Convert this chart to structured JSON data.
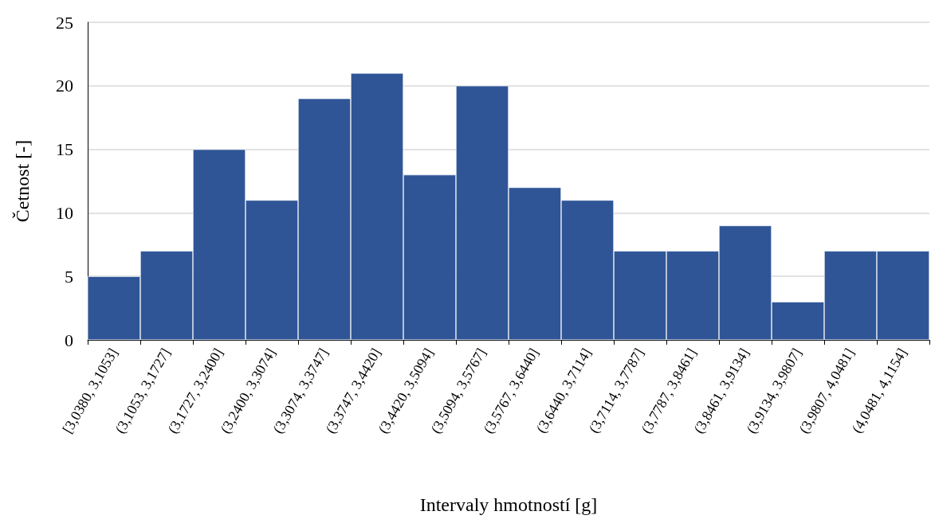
{
  "chart_data": {
    "type": "bar",
    "xlabel": "Intervaly hmotností [g]",
    "ylabel": "Četnost [-]",
    "categories": [
      "[3,0380, 3,1053]",
      "(3,1053, 3,1727]",
      "(3,1727, 3,2400]",
      "(3,2400, 3,3074]",
      "(3,3074, 3,3747]",
      "(3,3747, 3,4420]",
      "(3,4420, 3,5094]",
      "(3,5094, 3,5767]",
      "(3,5767, 3,6440]",
      "(3,6440, 3,7114]",
      "(3,7114, 3,7787]",
      "(3,7787, 3,8461]",
      "(3,8461, 3,9134]",
      "(3,9134, 3,9807]",
      "(3,9807, 4,0481]",
      "(4,0481, 4,1154]"
    ],
    "values": [
      5,
      7,
      15,
      11,
      19,
      21,
      13,
      20,
      12,
      11,
      7,
      7,
      9,
      3,
      7,
      7
    ],
    "color": "#2f5597",
    "ylim": [
      0,
      25
    ],
    "yticks": [
      0,
      5,
      10,
      15,
      20,
      25
    ],
    "grid": "y"
  }
}
